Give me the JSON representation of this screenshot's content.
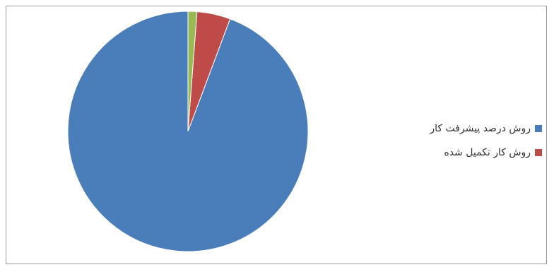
{
  "chart_data": {
    "type": "pie",
    "title": "",
    "series": [
      {
        "name": "",
        "values": [
          94.3,
          4.5,
          1.2
        ]
      }
    ],
    "slices": [
      {
        "label": "روش درصد پیشرفت کار",
        "value": 94.3,
        "color": "#4a7ebb",
        "in_legend": true
      },
      {
        "label": "روش کار تکمیل شده",
        "value": 4.5,
        "color": "#be4b48",
        "in_legend": true
      },
      {
        "label": "",
        "value": 1.2,
        "color": "#98b954",
        "in_legend": false
      }
    ],
    "start_angle": "12 o'clock",
    "direction": "counterclockwise",
    "legend_position": "right"
  },
  "legend": {
    "items": [
      {
        "label": "روش درصد پیشرفت کار",
        "color": "#4a7ebb"
      },
      {
        "label": "روش کار تکمیل شده",
        "color": "#be4b48"
      }
    ]
  }
}
